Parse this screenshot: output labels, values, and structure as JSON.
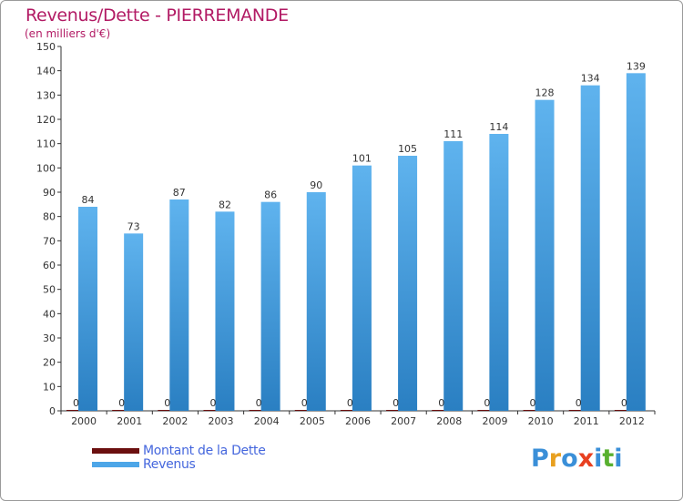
{
  "title": "Revenus/Dette - PIERREMANDE",
  "subtitle": "(en milliers d'€)",
  "colors": {
    "title": "#b21a64",
    "revenus": "#4da6e8",
    "dette": "#6b0f0f",
    "legend_text": "#4466dd"
  },
  "legend": [
    {
      "label": "Montant de la Dette",
      "color": "#6b0f0f"
    },
    {
      "label": "Revenus",
      "color": "#4da6e8"
    }
  ],
  "logo": {
    "text": "Proxiti",
    "letter_colors": [
      "#3a8fd8",
      "#e8a020",
      "#3a8fd8",
      "#e84020",
      "#3a8fd8",
      "#58b030",
      "#3a8fd8"
    ]
  },
  "chart_data": {
    "type": "bar",
    "categories": [
      "2000",
      "2001",
      "2002",
      "2003",
      "2004",
      "2005",
      "2006",
      "2007",
      "2008",
      "2009",
      "2010",
      "2011",
      "2012"
    ],
    "series": [
      {
        "name": "Montant de la Dette",
        "values": [
          0,
          0,
          0,
          0,
          0,
          0,
          0,
          0,
          0,
          0,
          0,
          0,
          0
        ]
      },
      {
        "name": "Revenus",
        "values": [
          84,
          73,
          87,
          82,
          86,
          90,
          101,
          105,
          111,
          114,
          128,
          134,
          139
        ]
      }
    ],
    "ylim": [
      0,
      150
    ],
    "yticks": [
      0,
      10,
      20,
      30,
      40,
      50,
      60,
      70,
      80,
      90,
      100,
      110,
      120,
      130,
      140,
      150
    ],
    "grid": false,
    "legend_position": "bottom-left"
  }
}
